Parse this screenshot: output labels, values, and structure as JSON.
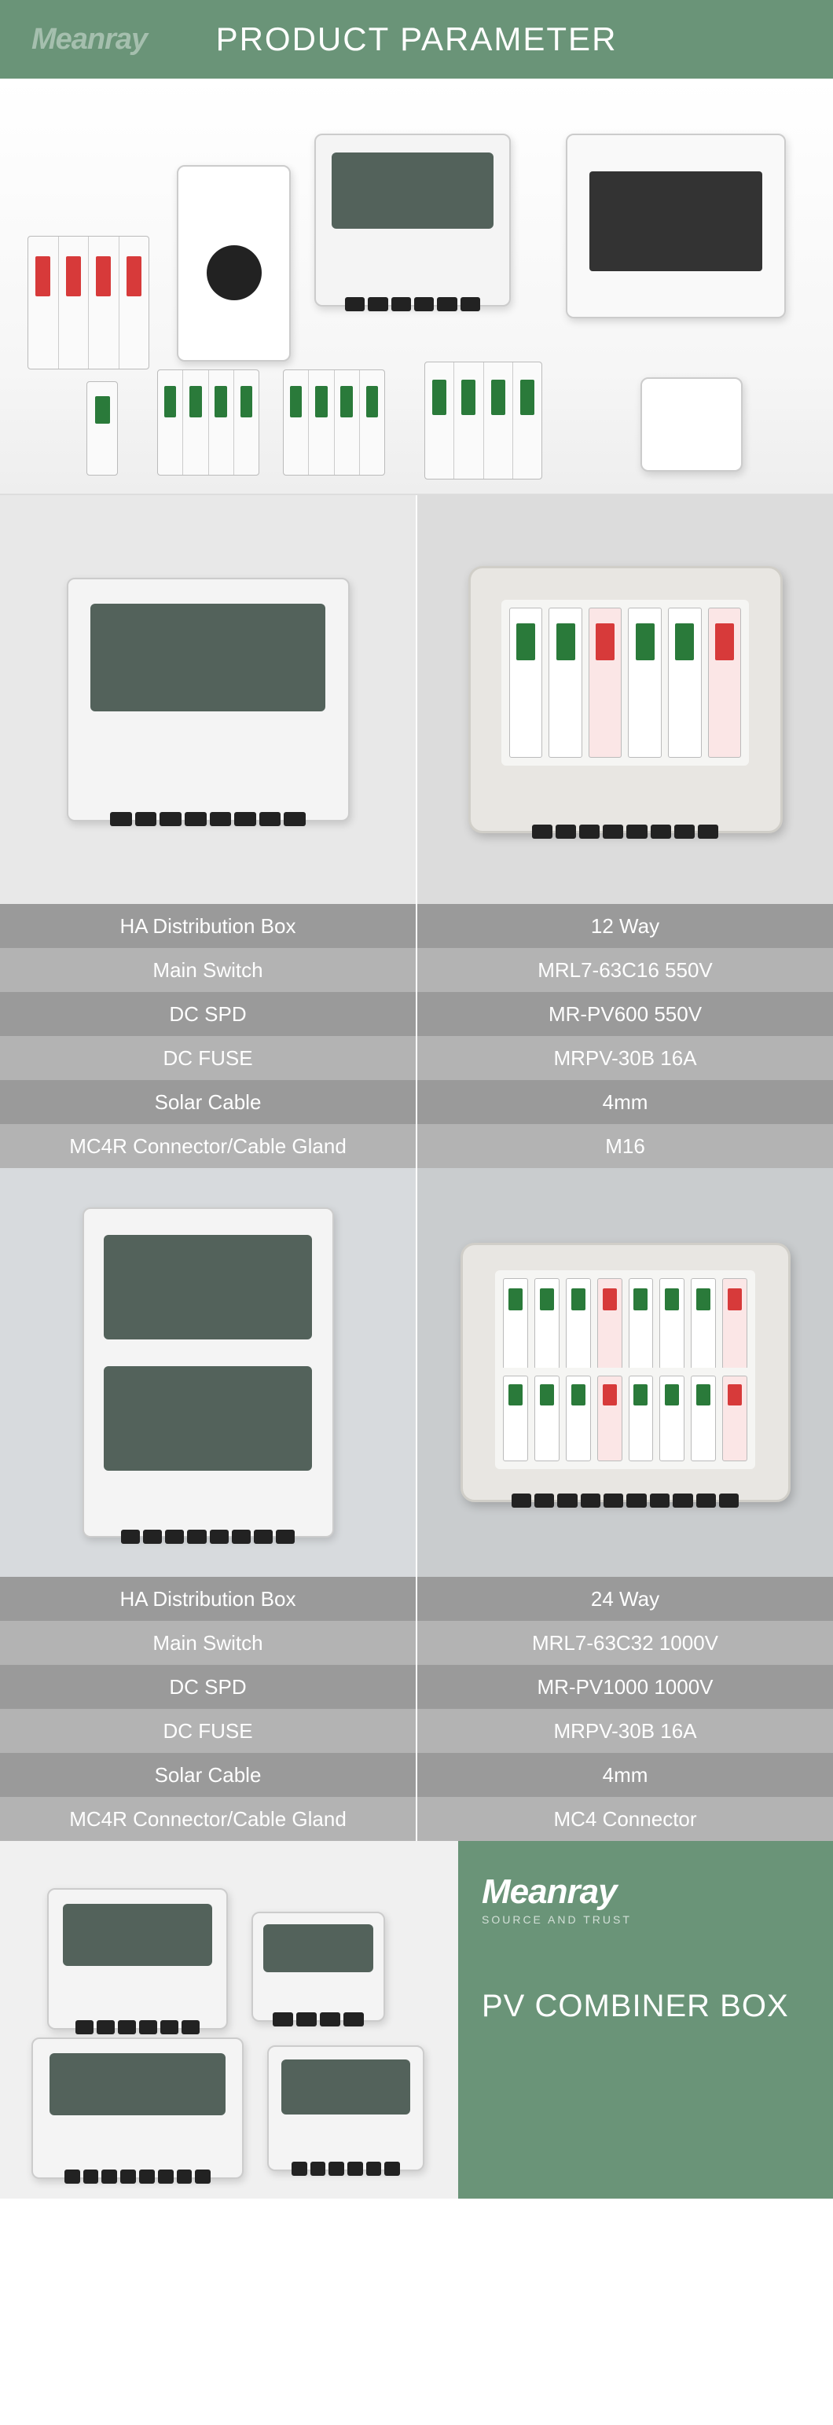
{
  "brand": "Meanray",
  "header": {
    "title": "PRODUCT PARAMETER",
    "bg_color": "#6a9478",
    "text_color": "#ffffff",
    "title_fontsize": 42
  },
  "spec_table_1": {
    "row_colors": {
      "dark": "#9a9a9a",
      "light": "#b3b3b3"
    },
    "text_color": "#ffffff",
    "fontsize": 26,
    "rows": [
      {
        "label": "HA Distribution Box",
        "value": "12 Way"
      },
      {
        "label": "Main Switch",
        "value": "MRL7-63C16 550V"
      },
      {
        "label": "DC SPD",
        "value": "MR-PV600 550V"
      },
      {
        "label": "DC FUSE",
        "value": "MRPV-30B 16A"
      },
      {
        "label": "Solar Cable",
        "value": "4mm"
      },
      {
        "label": "MC4R Connector/Cable Gland",
        "value": "M16"
      }
    ]
  },
  "spec_table_2": {
    "row_colors": {
      "dark": "#9a9a9a",
      "light": "#b3b3b3"
    },
    "text_color": "#ffffff",
    "fontsize": 26,
    "rows": [
      {
        "label": "HA Distribution Box",
        "value": "24 Way"
      },
      {
        "label": "Main Switch",
        "value": "MRL7-63C32 1000V"
      },
      {
        "label": "DC SPD",
        "value": "MR-PV1000 1000V"
      },
      {
        "label": "DC FUSE",
        "value": "MRPV-30B 16A"
      },
      {
        "label": "Solar Cable",
        "value": "4mm"
      },
      {
        "label": "MC4R Connector/Cable Gland",
        "value": "MC4 Connector"
      }
    ]
  },
  "footer": {
    "brand": "Meanray",
    "tagline": "SOURCE AND TRUST",
    "title": "PV COMBINER BOX",
    "bg_color": "#6a9478",
    "text_color": "#ffffff"
  }
}
